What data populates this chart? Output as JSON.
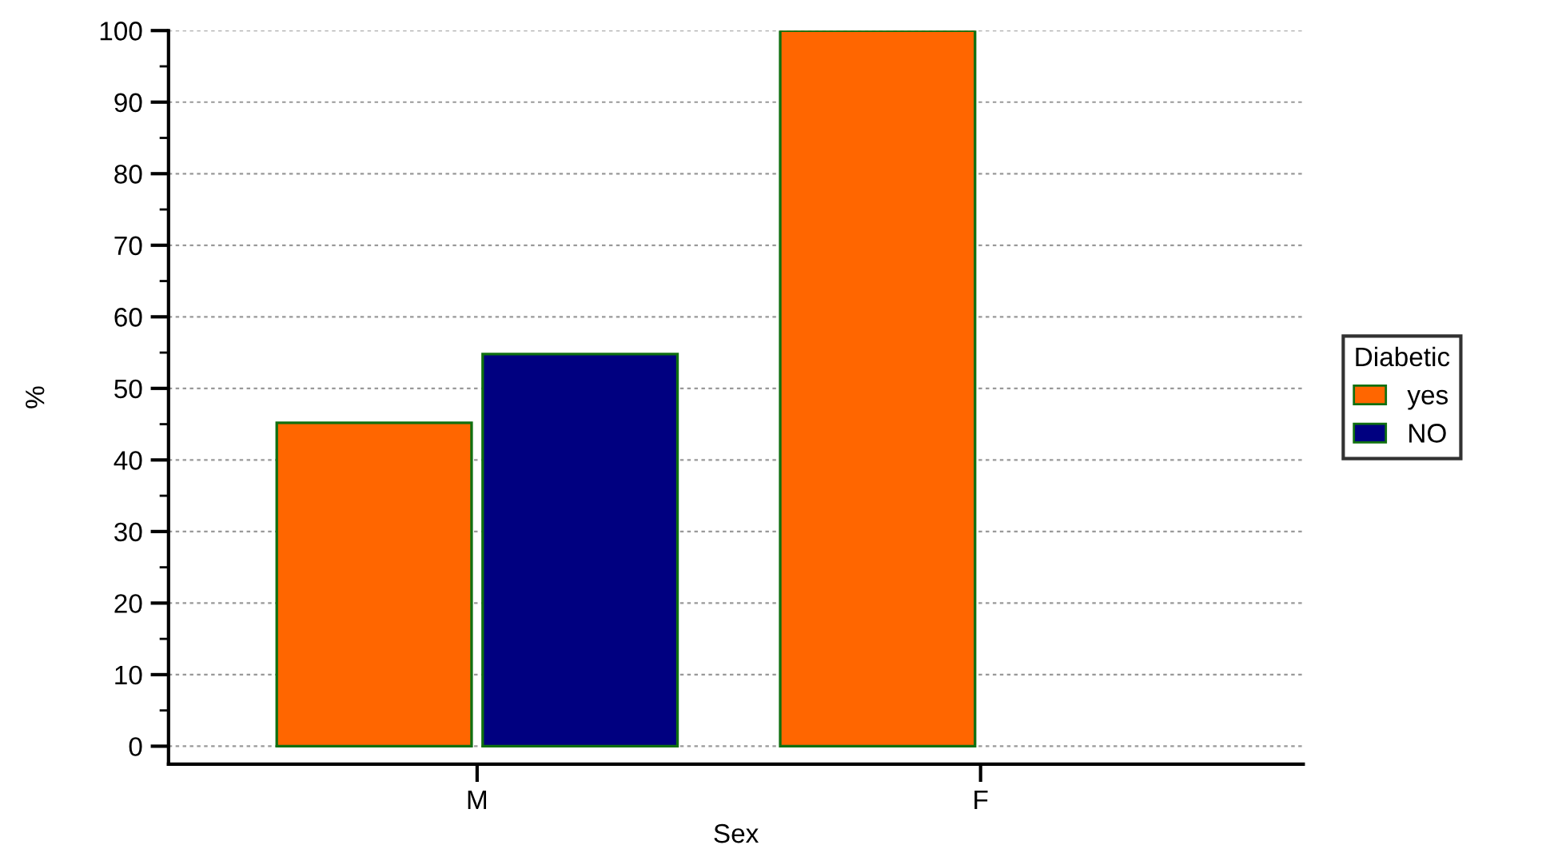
{
  "chart_data": {
    "type": "bar",
    "xlabel": "Sex",
    "ylabel": "%",
    "legend_title": "Diabetic",
    "categories": [
      "M",
      "F"
    ],
    "series": [
      {
        "name": "yes",
        "color": "#ff6600",
        "values": [
          45.2,
          100
        ]
      },
      {
        "name": "NO",
        "color": "#000080",
        "values": [
          54.8,
          null
        ]
      }
    ],
    "ylim": [
      -2.5,
      100
    ],
    "yticks": [
      0,
      10,
      20,
      30,
      40,
      50,
      60,
      70,
      80,
      90,
      100
    ],
    "grid": "y",
    "legend": "right"
  }
}
